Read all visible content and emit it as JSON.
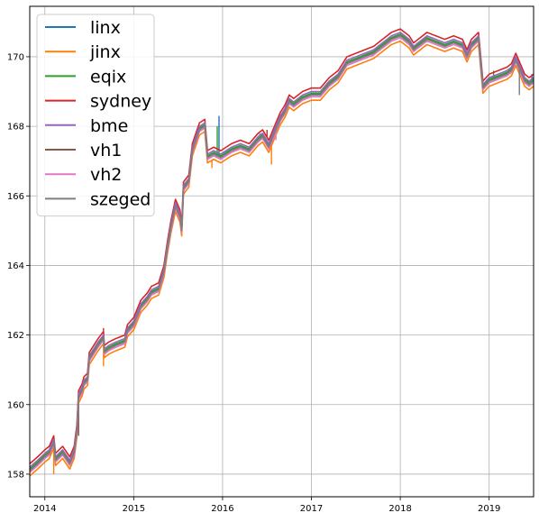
{
  "chart_data": {
    "type": "line",
    "title": "",
    "xlabel": "",
    "ylabel": "",
    "xlim": [
      2013.83,
      2019.5
    ],
    "ylim": [
      157.35,
      171.45
    ],
    "grid": true,
    "legend_position": "top-left",
    "x_ticks": [
      {
        "value": 2014,
        "label": "2014"
      },
      {
        "value": 2015,
        "label": "2015"
      },
      {
        "value": 2016,
        "label": "2016"
      },
      {
        "value": 2017,
        "label": "2017"
      },
      {
        "value": 2018,
        "label": "2018"
      },
      {
        "value": 2019,
        "label": "2019"
      }
    ],
    "y_ticks": [
      {
        "value": 158,
        "label": "158"
      },
      {
        "value": 160,
        "label": "160"
      },
      {
        "value": 162,
        "label": "162"
      },
      {
        "value": 164,
        "label": "164"
      },
      {
        "value": 166,
        "label": "166"
      },
      {
        "value": 168,
        "label": "168"
      },
      {
        "value": 170,
        "label": "170"
      }
    ],
    "reference_series": [
      [
        2013.83,
        158.1
      ],
      [
        2013.92,
        158.3
      ],
      [
        2014.0,
        158.5
      ],
      [
        2014.05,
        158.6
      ],
      [
        2014.1,
        158.9
      ],
      [
        2014.12,
        158.4
      ],
      [
        2014.2,
        158.6
      ],
      [
        2014.28,
        158.3
      ],
      [
        2014.33,
        158.6
      ],
      [
        2014.36,
        159.2
      ],
      [
        2014.38,
        160.2
      ],
      [
        2014.42,
        160.4
      ],
      [
        2014.44,
        160.6
      ],
      [
        2014.48,
        160.7
      ],
      [
        2014.5,
        161.3
      ],
      [
        2014.55,
        161.5
      ],
      [
        2014.6,
        161.7
      ],
      [
        2014.66,
        161.9
      ],
      [
        2014.67,
        161.5
      ],
      [
        2014.72,
        161.6
      ],
      [
        2014.8,
        161.7
      ],
      [
        2014.9,
        161.8
      ],
      [
        2014.93,
        162.1
      ],
      [
        2015.0,
        162.3
      ],
      [
        2015.08,
        162.8
      ],
      [
        2015.15,
        163.0
      ],
      [
        2015.2,
        163.2
      ],
      [
        2015.28,
        163.3
      ],
      [
        2015.34,
        163.8
      ],
      [
        2015.38,
        164.5
      ],
      [
        2015.42,
        165.1
      ],
      [
        2015.47,
        165.7
      ],
      [
        2015.52,
        165.4
      ],
      [
        2015.54,
        165.0
      ],
      [
        2015.56,
        166.2
      ],
      [
        2015.62,
        166.4
      ],
      [
        2015.66,
        167.3
      ],
      [
        2015.7,
        167.6
      ],
      [
        2015.74,
        167.9
      ],
      [
        2015.8,
        168.0
      ],
      [
        2015.83,
        167.1
      ],
      [
        2015.9,
        167.2
      ],
      [
        2015.98,
        167.1
      ],
      [
        2016.1,
        167.3
      ],
      [
        2016.2,
        167.4
      ],
      [
        2016.3,
        167.3
      ],
      [
        2016.4,
        167.6
      ],
      [
        2016.45,
        167.7
      ],
      [
        2016.52,
        167.4
      ],
      [
        2016.6,
        167.9
      ],
      [
        2016.65,
        168.2
      ],
      [
        2016.7,
        168.4
      ],
      [
        2016.75,
        168.7
      ],
      [
        2016.8,
        168.6
      ],
      [
        2016.9,
        168.8
      ],
      [
        2017.0,
        168.9
      ],
      [
        2017.1,
        168.9
      ],
      [
        2017.2,
        169.2
      ],
      [
        2017.3,
        169.4
      ],
      [
        2017.4,
        169.8
      ],
      [
        2017.5,
        169.9
      ],
      [
        2017.6,
        170.0
      ],
      [
        2017.7,
        170.1
      ],
      [
        2017.8,
        170.3
      ],
      [
        2017.9,
        170.5
      ],
      [
        2018.0,
        170.6
      ],
      [
        2018.1,
        170.4
      ],
      [
        2018.15,
        170.2
      ],
      [
        2018.2,
        170.3
      ],
      [
        2018.3,
        170.5
      ],
      [
        2018.4,
        170.4
      ],
      [
        2018.5,
        170.3
      ],
      [
        2018.6,
        170.4
      ],
      [
        2018.7,
        170.3
      ],
      [
        2018.75,
        170.0
      ],
      [
        2018.8,
        170.3
      ],
      [
        2018.88,
        170.5
      ],
      [
        2018.93,
        169.1
      ],
      [
        2019.0,
        169.3
      ],
      [
        2019.1,
        169.4
      ],
      [
        2019.2,
        169.5
      ],
      [
        2019.25,
        169.6
      ],
      [
        2019.3,
        169.9
      ],
      [
        2019.35,
        169.6
      ],
      [
        2019.4,
        169.3
      ],
      [
        2019.45,
        169.2
      ],
      [
        2019.5,
        169.3
      ]
    ],
    "series": [
      {
        "name": "linx",
        "color": "#1f77b4",
        "offset": 0.03,
        "spikes": [
          [
            2015.96,
            168.3
          ],
          [
            2019.48,
            169.5
          ]
        ]
      },
      {
        "name": "jinx",
        "color": "#ff7f0e",
        "offset": -0.15,
        "spikes": [
          [
            2014.1,
            158.0
          ],
          [
            2014.66,
            161.1
          ],
          [
            2015.88,
            166.8
          ],
          [
            2016.55,
            166.9
          ]
        ]
      },
      {
        "name": "eqix",
        "color": "#2ca02c",
        "offset": 0.05,
        "spikes": [
          [
            2015.94,
            168.0
          ],
          [
            2019.05,
            169.6
          ]
        ]
      },
      {
        "name": "sydney",
        "color": "#d62728",
        "offset": 0.2,
        "spikes": [
          [
            2014.66,
            162.2
          ],
          [
            2015.8,
            168.2
          ],
          [
            2016.5,
            167.9
          ],
          [
            2017.98,
            170.8
          ]
        ]
      },
      {
        "name": "bme",
        "color": "#9467bd",
        "offset": 0.1,
        "spikes": [
          [
            2014.05,
            158.7
          ],
          [
            2016.42,
            167.8
          ]
        ]
      },
      {
        "name": "vh1",
        "color": "#8c564b",
        "offset": 0.0,
        "spikes": [
          [
            2014.38,
            159.1
          ]
        ]
      },
      {
        "name": "vh2",
        "color": "#e377c2",
        "offset": -0.05,
        "spikes": [
          [
            2016.6,
            167.6
          ]
        ]
      },
      {
        "name": "szeged",
        "color": "#7f7f7f",
        "offset": 0.0,
        "spikes": [
          [
            2019.34,
            168.9
          ]
        ]
      }
    ]
  }
}
